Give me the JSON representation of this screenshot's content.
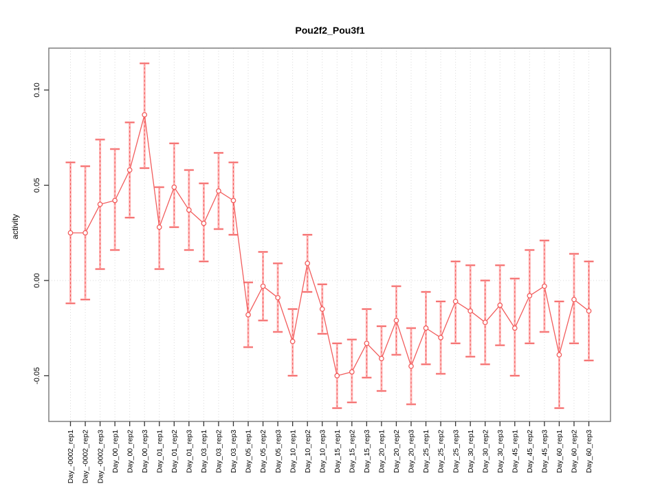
{
  "figure": {
    "title": "Pou2f2_Pou3f1",
    "ylabel": "activity"
  },
  "chart_data": {
    "type": "line",
    "title": "Pou2f2_Pou3f1",
    "xlabel": "",
    "ylabel": "activity",
    "legend_position": "none",
    "grid": "vertical dotted gridlines at each category; dotted horizontal line at y=0",
    "marker": "open-circle",
    "error_bars": true,
    "categories": [
      "Day_-0002_rep1",
      "Day_-0002_rep2",
      "Day_-0002_rep3",
      "Day_00_rep1",
      "Day_00_rep2",
      "Day_00_rep3",
      "Day_01_rep1",
      "Day_01_rep2",
      "Day_01_rep3",
      "Day_03_rep1",
      "Day_03_rep2",
      "Day_03_rep3",
      "Day_05_rep1",
      "Day_05_rep2",
      "Day_05_rep3",
      "Day_10_rep1",
      "Day_10_rep2",
      "Day_10_rep3",
      "Day_15_rep1",
      "Day_15_rep2",
      "Day_15_rep3",
      "Day_20_rep1",
      "Day_20_rep2",
      "Day_20_rep3",
      "Day_25_rep1",
      "Day_25_rep2",
      "Day_25_rep3",
      "Day_30_rep1",
      "Day_30_rep2",
      "Day_30_rep3",
      "Day_45_rep1",
      "Day_45_rep2",
      "Day_45_rep3",
      "Day_60_rep1",
      "Day_60_rep2",
      "Day_60_rep3"
    ],
    "series": [
      {
        "name": "activity",
        "values": [
          0.025,
          0.025,
          0.04,
          0.042,
          0.058,
          0.087,
          0.028,
          0.049,
          0.037,
          0.03,
          0.047,
          0.042,
          -0.018,
          -0.003,
          -0.009,
          -0.032,
          0.009,
          -0.015,
          -0.05,
          -0.048,
          -0.033,
          -0.041,
          -0.021,
          -0.045,
          -0.025,
          -0.03,
          -0.011,
          -0.016,
          -0.022,
          -0.013,
          -0.025,
          -0.008,
          -0.003,
          -0.039,
          -0.01,
          -0.016
        ],
        "err_high": [
          0.062,
          0.06,
          0.074,
          0.069,
          0.083,
          0.114,
          0.049,
          0.072,
          0.058,
          0.051,
          0.067,
          0.062,
          -0.001,
          0.015,
          0.009,
          -0.015,
          0.024,
          -0.002,
          -0.033,
          -0.031,
          -0.015,
          -0.024,
          -0.003,
          -0.025,
          -0.006,
          -0.011,
          0.01,
          0.008,
          0.0,
          0.008,
          0.001,
          0.016,
          0.021,
          -0.011,
          0.014,
          0.01
        ],
        "err_low": [
          -0.012,
          -0.01,
          0.006,
          0.016,
          0.033,
          0.059,
          0.006,
          0.028,
          0.016,
          0.01,
          0.027,
          0.024,
          -0.035,
          -0.021,
          -0.027,
          -0.05,
          -0.006,
          -0.028,
          -0.067,
          -0.064,
          -0.051,
          -0.058,
          -0.039,
          -0.065,
          -0.044,
          -0.049,
          -0.033,
          -0.04,
          -0.044,
          -0.034,
          -0.05,
          -0.033,
          -0.027,
          -0.067,
          -0.033,
          -0.042
        ]
      }
    ],
    "ylim": [
      -0.074,
      0.122
    ],
    "yticks": [
      -0.05,
      0.0,
      0.05,
      0.1
    ],
    "ytick_labels": [
      "-0.05",
      "0.00",
      "0.05",
      "0.10"
    ],
    "colors": {
      "series": "#f25c5c",
      "error_band": "#ffb4b4",
      "error_dash": "#ef5858",
      "grid": "#d9d9d9",
      "box": "#7f7f7f",
      "tick": "#333333",
      "text": "#000000",
      "background": "#ffffff"
    }
  }
}
